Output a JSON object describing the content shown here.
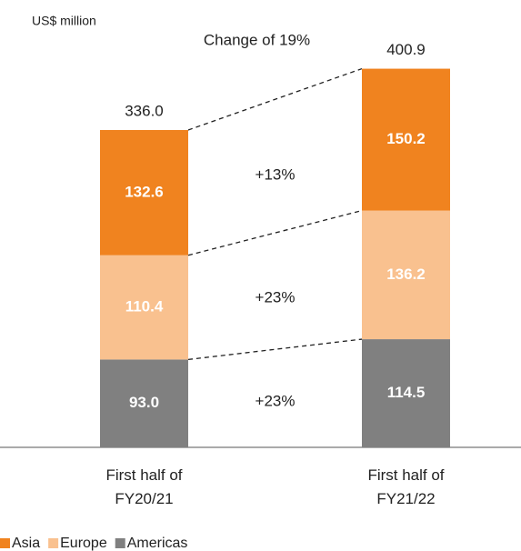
{
  "chart_data": {
    "type": "stacked_bar",
    "y_axis_label": "US$ million",
    "categories": [
      "First half of FY20/21",
      "First half of FY21/22"
    ],
    "series": [
      {
        "name": "Americas",
        "color": "#808080",
        "values": [
          93.0,
          114.5
        ],
        "value_labels": [
          "93.0",
          "114.5"
        ]
      },
      {
        "name": "Europe",
        "color": "#f9c18f",
        "values": [
          110.4,
          136.2
        ],
        "value_labels": [
          "110.4",
          "136.2"
        ]
      },
      {
        "name": "Asia",
        "color": "#f0831f",
        "values": [
          132.6,
          150.2
        ],
        "value_labels": [
          "132.6",
          "150.2"
        ]
      }
    ],
    "totals": {
      "values": [
        336.0,
        400.9
      ],
      "value_labels": [
        "336.0",
        "400.9"
      ]
    },
    "annotations": [
      "Change of 19%",
      "+23%",
      "+23%",
      "+13%"
    ],
    "ylim": [
      0,
      400
    ]
  }
}
